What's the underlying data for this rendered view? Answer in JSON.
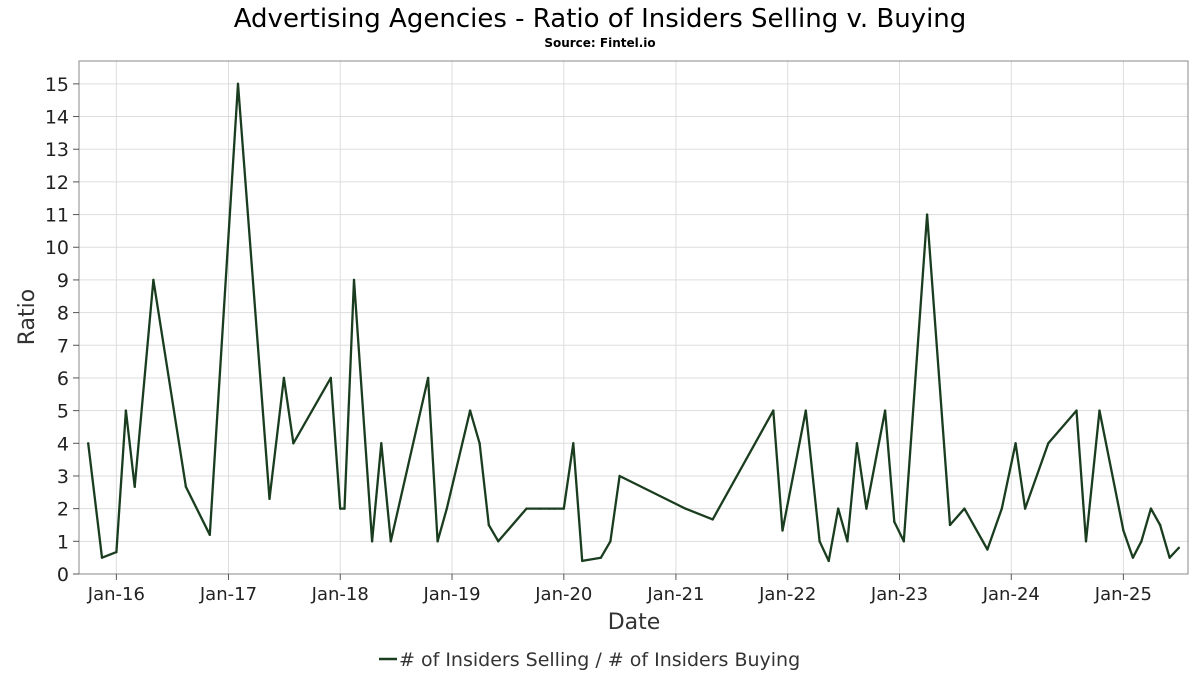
{
  "chart_data": {
    "type": "line",
    "title": "Advertising Agencies - Ratio of Insiders Selling v. Buying",
    "subtitle": "Source: Fintel.io",
    "xlabel": "Date",
    "ylabel": "Ratio",
    "xlim": [
      "2015-09-01",
      "2025-07-31"
    ],
    "ylim": [
      0,
      15.7
    ],
    "grid": true,
    "legend_position": "bottom-center",
    "x_ticks": [
      {
        "date": "2016-01-01",
        "label": "Jan-16"
      },
      {
        "date": "2017-01-01",
        "label": "Jan-17"
      },
      {
        "date": "2018-01-01",
        "label": "Jan-18"
      },
      {
        "date": "2019-01-01",
        "label": "Jan-19"
      },
      {
        "date": "2020-01-01",
        "label": "Jan-20"
      },
      {
        "date": "2021-01-01",
        "label": "Jan-21"
      },
      {
        "date": "2022-01-01",
        "label": "Jan-22"
      },
      {
        "date": "2023-01-01",
        "label": "Jan-23"
      },
      {
        "date": "2024-01-01",
        "label": "Jan-24"
      },
      {
        "date": "2025-01-01",
        "label": "Jan-25"
      }
    ],
    "y_ticks": [
      "0",
      "1",
      "2",
      "3",
      "4",
      "5",
      "6",
      "7",
      "8",
      "9",
      "10",
      "11",
      "12",
      "13",
      "14",
      "15"
    ],
    "series": [
      {
        "name": "# of Insiders Selling / # of Insiders Buying",
        "color": "#1a3d1f",
        "points": [
          [
            "2015-10-01",
            4
          ],
          [
            "2015-11-15",
            0.5
          ],
          [
            "2016-01-01",
            0.67
          ],
          [
            "2016-02-01",
            5
          ],
          [
            "2016-03-01",
            2.67
          ],
          [
            "2016-05-01",
            9
          ],
          [
            "2016-08-15",
            2.67
          ],
          [
            "2016-11-01",
            1.2
          ],
          [
            "2017-02-01",
            15
          ],
          [
            "2017-05-15",
            2.3
          ],
          [
            "2017-07-01",
            6
          ],
          [
            "2017-08-01",
            4
          ],
          [
            "2017-12-01",
            6
          ],
          [
            "2018-01-01",
            2
          ],
          [
            "2018-01-15",
            2
          ],
          [
            "2018-02-15",
            9
          ],
          [
            "2018-04-15",
            1
          ],
          [
            "2018-05-15",
            4
          ],
          [
            "2018-06-15",
            1
          ],
          [
            "2018-10-15",
            6
          ],
          [
            "2018-11-15",
            1
          ],
          [
            "2018-12-15",
            2
          ],
          [
            "2019-03-01",
            5
          ],
          [
            "2019-04-01",
            4
          ],
          [
            "2019-05-01",
            1.5
          ],
          [
            "2019-06-01",
            1
          ],
          [
            "2019-09-01",
            2
          ],
          [
            "2019-10-15",
            2
          ],
          [
            "2019-11-15",
            2
          ],
          [
            "2019-12-01",
            2
          ],
          [
            "2020-01-01",
            2
          ],
          [
            "2020-02-01",
            4
          ],
          [
            "2020-03-01",
            0.4
          ],
          [
            "2020-05-01",
            0.5
          ],
          [
            "2020-06-01",
            1
          ],
          [
            "2020-07-01",
            3
          ],
          [
            "2021-02-01",
            2
          ],
          [
            "2021-05-01",
            1.67
          ],
          [
            "2021-11-15",
            5
          ],
          [
            "2021-12-15",
            1.33
          ],
          [
            "2022-03-01",
            5
          ],
          [
            "2022-04-15",
            1
          ],
          [
            "2022-05-15",
            0.4
          ],
          [
            "2022-06-15",
            2
          ],
          [
            "2022-07-15",
            1
          ],
          [
            "2022-08-15",
            4
          ],
          [
            "2022-09-15",
            2
          ],
          [
            "2022-11-15",
            5
          ],
          [
            "2022-12-15",
            1.6
          ],
          [
            "2023-01-15",
            1
          ],
          [
            "2023-04-01",
            11
          ],
          [
            "2023-06-15",
            1.5
          ],
          [
            "2023-08-01",
            2
          ],
          [
            "2023-10-15",
            0.75
          ],
          [
            "2023-12-01",
            2
          ],
          [
            "2024-01-15",
            4
          ],
          [
            "2024-02-15",
            2
          ],
          [
            "2024-05-01",
            4
          ],
          [
            "2024-08-01",
            5
          ],
          [
            "2024-09-01",
            1
          ],
          [
            "2024-10-15",
            5
          ],
          [
            "2025-01-01",
            1.33
          ],
          [
            "2025-02-01",
            0.5
          ],
          [
            "2025-03-01",
            1
          ],
          [
            "2025-04-01",
            2
          ],
          [
            "2025-05-01",
            1.5
          ],
          [
            "2025-06-01",
            0.5
          ],
          [
            "2025-07-01",
            0.8
          ]
        ]
      }
    ]
  }
}
